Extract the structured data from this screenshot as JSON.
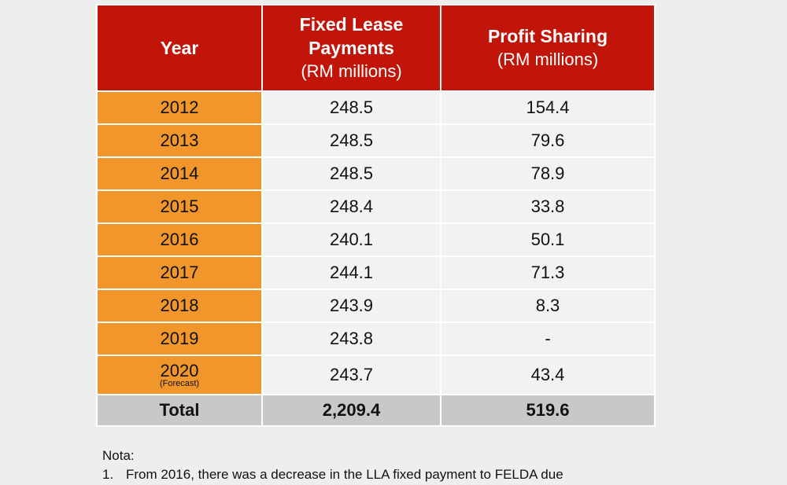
{
  "table": {
    "headers": {
      "year": "Year",
      "fixed_title": "Fixed Lease Payments",
      "fixed_unit": "(RM millions)",
      "profit_title": "Profit Sharing",
      "profit_unit": "(RM millions)"
    },
    "rows": [
      {
        "year": "2012",
        "fixed": "248.5",
        "profit": "154.4"
      },
      {
        "year": "2013",
        "fixed": "248.5",
        "profit": "79.6"
      },
      {
        "year": "2014",
        "fixed": "248.5",
        "profit": "78.9"
      },
      {
        "year": "2015",
        "fixed": "248.4",
        "profit": "33.8"
      },
      {
        "year": "2016",
        "fixed": "240.1",
        "profit": "50.1"
      },
      {
        "year": "2017",
        "fixed": "244.1",
        "profit": "71.3"
      },
      {
        "year": "2018",
        "fixed": "243.9",
        "profit": "8.3"
      },
      {
        "year": "2019",
        "fixed": "243.8",
        "profit": "-"
      },
      {
        "year": "2020",
        "note": "(Forecast)",
        "fixed": "243.7",
        "profit": "43.4"
      }
    ],
    "total": {
      "label": "Total",
      "fixed": "2,209.4",
      "profit": "519.6"
    }
  },
  "notes": {
    "title": "Nota:",
    "items": [
      {
        "num": "1.",
        "text": "From 2016, there was a decrease in the LLA fixed payment to FELDA due"
      }
    ]
  },
  "colors": {
    "header_red": "#c01508",
    "year_orange": "#f0962a",
    "total_grey": "#c8c8c8",
    "background": "#eeeeee"
  }
}
